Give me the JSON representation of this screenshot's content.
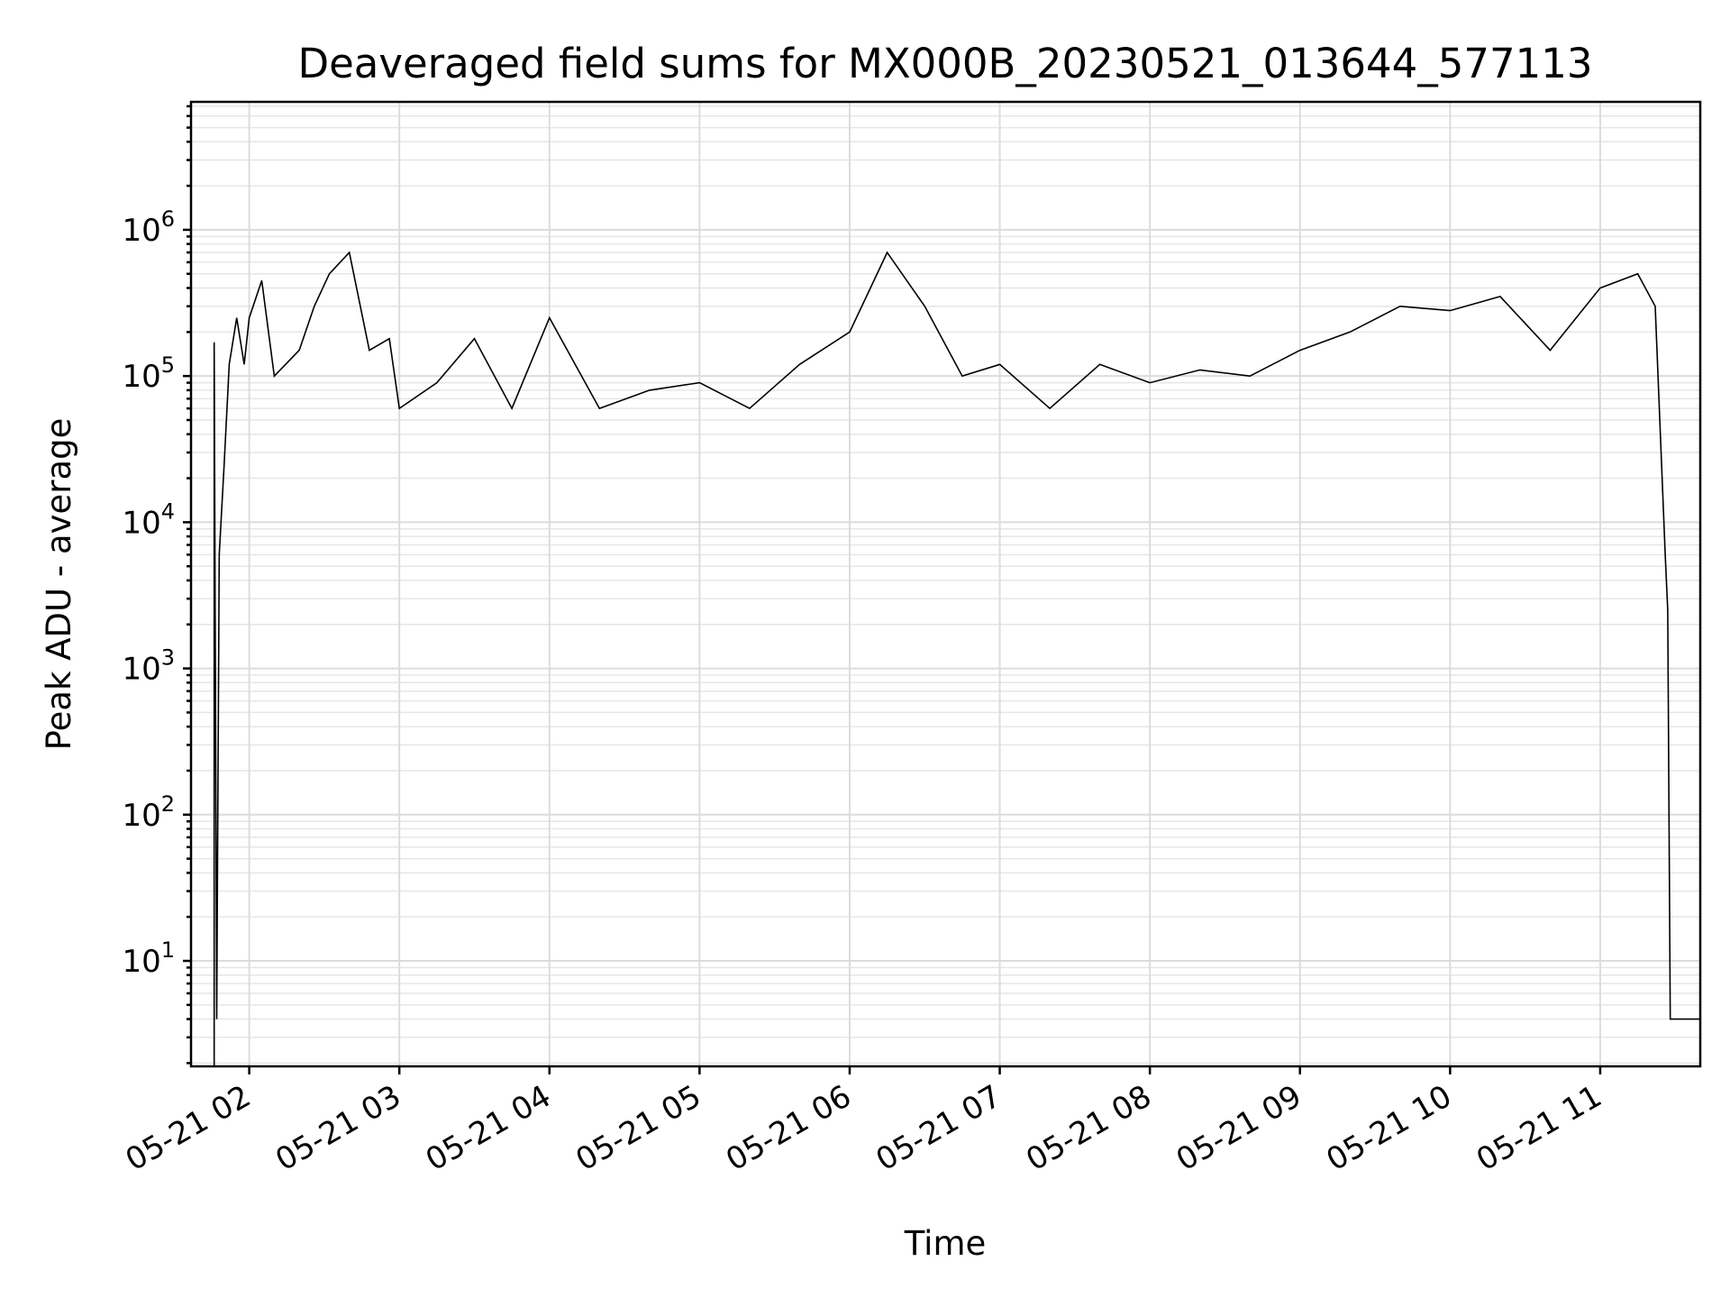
{
  "chart_data": {
    "type": "line",
    "title": "Deaveraged field sums for MX000B_20230521_013644_577113",
    "xlabel": "Time",
    "ylabel": "Peak ADU - average",
    "yscale": "log",
    "grid": true,
    "grid_minor": true,
    "xlim": [
      "2023-05-21 01:36:44",
      "2023-05-21 11:40:00"
    ],
    "ylim": [
      1.9,
      7500000
    ],
    "xticks": [
      "05-21 02",
      "05-21 03",
      "05-21 04",
      "05-21 05",
      "05-21 06",
      "05-21 07",
      "05-21 08",
      "05-21 09",
      "05-21 10",
      "05-21 11"
    ],
    "yticks": [
      10,
      100,
      1000,
      10000,
      100000,
      1000000
    ],
    "series": [
      {
        "color": "#000000",
        "x": [
          "2023-05-21 01:46",
          "2023-05-21 01:46",
          "2023-05-21 01:47",
          "2023-05-21 01:47",
          "2023-05-21 01:48",
          "2023-05-21 01:50",
          "2023-05-21 01:52",
          "2023-05-21 01:55",
          "2023-05-21 01:58",
          "2023-05-21 02:00",
          "2023-05-21 02:05",
          "2023-05-21 02:10",
          "2023-05-21 02:20",
          "2023-05-21 02:26",
          "2023-05-21 02:32",
          "2023-05-21 02:40",
          "2023-05-21 02:48",
          "2023-05-21 02:56",
          "2023-05-21 03:00",
          "2023-05-21 03:15",
          "2023-05-21 03:30",
          "2023-05-21 03:45",
          "2023-05-21 04:00",
          "2023-05-21 04:20",
          "2023-05-21 04:40",
          "2023-05-21 05:00",
          "2023-05-21 05:20",
          "2023-05-21 05:40",
          "2023-05-21 06:00",
          "2023-05-21 06:15",
          "2023-05-21 06:30",
          "2023-05-21 06:45",
          "2023-05-21 07:00",
          "2023-05-21 07:20",
          "2023-05-21 07:40",
          "2023-05-21 08:00",
          "2023-05-21 08:20",
          "2023-05-21 08:40",
          "2023-05-21 09:00",
          "2023-05-21 09:20",
          "2023-05-21 09:40",
          "2023-05-21 10:00",
          "2023-05-21 10:20",
          "2023-05-21 10:40",
          "2023-05-21 11:00",
          "2023-05-21 11:15",
          "2023-05-21 11:22",
          "2023-05-21 11:26",
          "2023-05-21 11:27",
          "2023-05-21 11:28",
          "2023-05-21 11:40"
        ],
        "values": [
          1.9,
          170000,
          4,
          4,
          6000,
          25000,
          120000,
          250000,
          120000,
          250000,
          450000,
          100000,
          150000,
          300000,
          500000,
          700000,
          150000,
          180000,
          60000,
          90000,
          180000,
          60000,
          250000,
          60000,
          80000,
          90000,
          60000,
          120000,
          200000,
          700000,
          300000,
          100000,
          120000,
          60000,
          120000,
          90000,
          110000,
          100000,
          150000,
          200000,
          300000,
          280000,
          350000,
          150000,
          400000,
          500000,
          300000,
          6000,
          2500,
          4,
          4
        ]
      }
    ]
  }
}
